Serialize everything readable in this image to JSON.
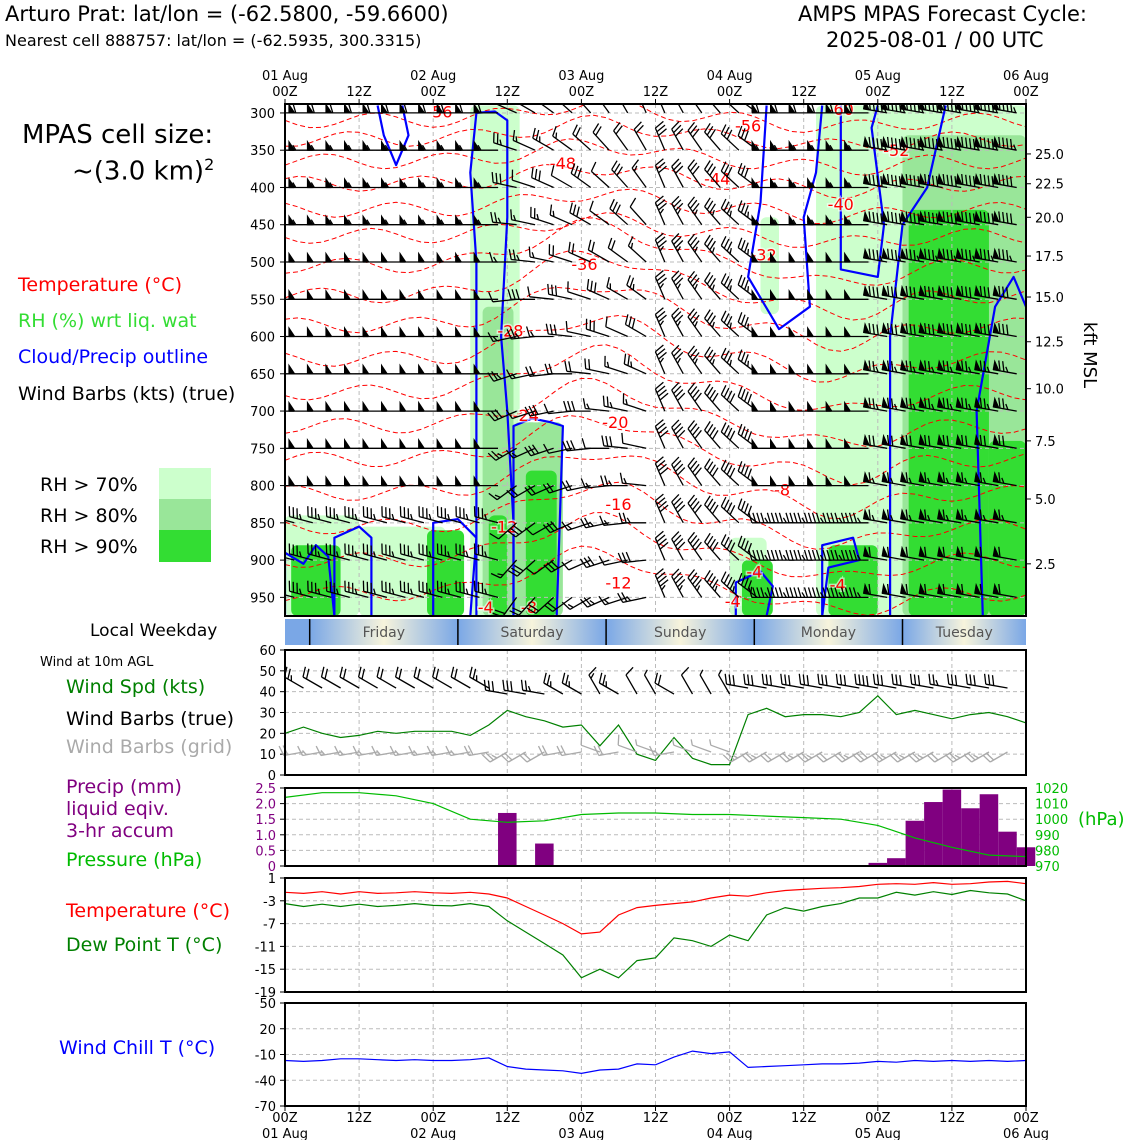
{
  "header": {
    "station_line": "Arturo Prat: lat/lon = (-62.5800, -59.6600)",
    "cell_line": "Nearest cell 888757: lat/lon = (-62.5935, 300.3315)",
    "cycle_title": "AMPS MPAS Forecast Cycle:",
    "cycle_value": "2025-08-01 / 00 UTC"
  },
  "cell_size": {
    "line1": "MPAS cell size:",
    "line2": "~(3.0 km)",
    "sup": "2"
  },
  "legend": {
    "temperature": "Temperature (°C)",
    "rh": "RH (%) wrt liq. wat",
    "cloud": "Cloud/Precip outline",
    "wind": "Wind Barbs (kts) (true)",
    "rh70": "RH > 70%",
    "rh80": "RH > 80%",
    "rh90": "RH > 90%"
  },
  "colors": {
    "temperature": "#ff0000",
    "rh_label": "#33dd33",
    "cloud": "#0000ff",
    "rh70": "#ccffcc",
    "rh80": "#99e699",
    "rh90": "#33dd33",
    "wind_spd": "#008000",
    "precip": "#800080",
    "pressure": "#00bb00",
    "dewpoint": "#008000",
    "windchill": "#0000ff",
    "grid_barb": "#aaaaaa"
  },
  "time_axis": {
    "top_labels": [
      {
        "h": 0,
        "l1": "01 Aug",
        "l2": "00Z"
      },
      {
        "h": 12,
        "l1": "",
        "l2": "12Z"
      },
      {
        "h": 24,
        "l1": "02 Aug",
        "l2": "00Z"
      },
      {
        "h": 36,
        "l1": "",
        "l2": "12Z"
      },
      {
        "h": 48,
        "l1": "03 Aug",
        "l2": "00Z"
      },
      {
        "h": 60,
        "l1": "",
        "l2": "12Z"
      },
      {
        "h": 72,
        "l1": "04 Aug",
        "l2": "00Z"
      },
      {
        "h": 84,
        "l1": "",
        "l2": "12Z"
      },
      {
        "h": 96,
        "l1": "05 Aug",
        "l2": "00Z"
      },
      {
        "h": 108,
        "l1": "",
        "l2": "12Z"
      },
      {
        "h": 120,
        "l1": "06 Aug",
        "l2": "00Z"
      }
    ],
    "bottom_labels": [
      {
        "h": 0,
        "l1": "00Z",
        "l2": "01 Aug"
      },
      {
        "h": 12,
        "l1": "12Z",
        "l2": ""
      },
      {
        "h": 24,
        "l1": "00Z",
        "l2": "02 Aug"
      },
      {
        "h": 36,
        "l1": "12Z",
        "l2": ""
      },
      {
        "h": 48,
        "l1": "00Z",
        "l2": "03 Aug"
      },
      {
        "h": 60,
        "l1": "12Z",
        "l2": ""
      },
      {
        "h": 72,
        "l1": "00Z",
        "l2": "04 Aug"
      },
      {
        "h": 84,
        "l1": "12Z",
        "l2": ""
      },
      {
        "h": 96,
        "l1": "00Z",
        "l2": "05 Aug"
      },
      {
        "h": 108,
        "l1": "12Z",
        "l2": ""
      },
      {
        "h": 120,
        "l1": "00Z",
        "l2": "06 Aug"
      }
    ]
  },
  "weekday": {
    "title": "Local Weekday",
    "days": [
      {
        "name": "Friday",
        "start": 4,
        "end": 28
      },
      {
        "name": "Saturday",
        "start": 28,
        "end": 52
      },
      {
        "name": "Sunday",
        "start": 52,
        "end": 76
      },
      {
        "name": "Monday",
        "start": 76,
        "end": 100
      },
      {
        "name": "Tuesday",
        "start": 100,
        "end": 120
      }
    ]
  },
  "panel_labels": {
    "wind10m": "Wind at 10m AGL",
    "wind_spd": "Wind Spd (kts)",
    "wind_barbs_true": "Wind Barbs (true)",
    "wind_barbs_grid": "Wind Barbs (grid)",
    "precip1": "Precip (mm)",
    "precip2": "liquid eqiv.",
    "precip3": "3-hr accum",
    "pressure": "Pressure (hPa)",
    "pressure_unit": "(hPa)",
    "temperature": "Temperature (°C)",
    "dewpoint": "Dew Point T (°C)",
    "windchill": "Wind Chill T (°C)",
    "kft": "kft MSL"
  },
  "chart_data": [
    {
      "type": "heatmap",
      "name": "upper-air time-height section",
      "y_pressure_ticks": [
        300,
        350,
        400,
        450,
        500,
        550,
        600,
        650,
        700,
        750,
        800,
        850,
        900,
        950
      ],
      "y_range_hpa": [
        975,
        288
      ],
      "kft_ticks": [
        {
          "label": "25.0",
          "p": 355
        },
        {
          "label": "22.5",
          "p": 395
        },
        {
          "label": "20.0",
          "p": 440
        },
        {
          "label": "17.5",
          "p": 492
        },
        {
          "label": "15.0",
          "p": 547
        },
        {
          "label": "12.5",
          "p": 607
        },
        {
          "label": "10.0",
          "p": 670
        },
        {
          "label": "7.5",
          "p": 740
        },
        {
          "label": "5.0",
          "p": 818
        },
        {
          "label": "2.5",
          "p": 905
        }
      ],
      "x_range_hours": [
        0,
        120
      ],
      "temperature_labels": [
        {
          "v": "-56",
          "h": 25,
          "p": 298
        },
        {
          "v": "-48",
          "h": 45,
          "p": 367
        },
        {
          "v": "-36",
          "h": 48.5,
          "p": 503
        },
        {
          "v": "-28",
          "h": 36.5,
          "p": 592
        },
        {
          "v": "-24",
          "h": 39,
          "p": 705
        },
        {
          "v": "-20",
          "h": 53.5,
          "p": 715
        },
        {
          "v": "-16",
          "h": 54,
          "p": 825
        },
        {
          "v": "-12",
          "h": 35.5,
          "p": 855
        },
        {
          "v": "-12",
          "h": 54,
          "p": 930
        },
        {
          "v": "-8",
          "h": 39.5,
          "p": 963
        },
        {
          "v": "-4",
          "h": 32.5,
          "p": 963
        },
        {
          "v": "-4",
          "h": 72.5,
          "p": 955
        },
        {
          "v": "-4",
          "h": 76,
          "p": 915
        },
        {
          "v": "-4",
          "h": 89.5,
          "p": 933
        },
        {
          "v": "-8",
          "h": 80.5,
          "p": 805
        },
        {
          "v": "-32",
          "h": 77.5,
          "p": 490
        },
        {
          "v": "-40",
          "h": 90,
          "p": 422
        },
        {
          "v": "-44",
          "h": 70,
          "p": 388
        },
        {
          "v": "-52",
          "h": 99,
          "p": 350
        },
        {
          "v": "-56",
          "h": 75,
          "p": 317
        },
        {
          "v": "-60",
          "h": 90,
          "p": 295
        }
      ],
      "rh_regions": [
        {
          "level": 70,
          "h0": 0,
          "h1": 12,
          "p_top": 840,
          "p_bot": 975
        },
        {
          "level": 90,
          "h0": 1,
          "h1": 9,
          "p_top": 880,
          "p_bot": 975
        },
        {
          "level": 70,
          "h0": 12,
          "h1": 26,
          "p_top": 855,
          "p_bot": 975
        },
        {
          "level": 90,
          "h0": 23,
          "h1": 29,
          "p_top": 860,
          "p_bot": 975
        },
        {
          "level": 70,
          "h0": 30,
          "h1": 38,
          "p_top": 290,
          "p_bot": 975
        },
        {
          "level": 80,
          "h0": 32,
          "h1": 37,
          "p_top": 560,
          "p_bot": 975
        },
        {
          "level": 90,
          "h0": 33,
          "h1": 36,
          "p_top": 840,
          "p_bot": 975
        },
        {
          "level": 80,
          "h0": 37,
          "h1": 45,
          "p_top": 715,
          "p_bot": 975
        },
        {
          "level": 90,
          "h0": 39,
          "h1": 44,
          "p_top": 780,
          "p_bot": 975
        },
        {
          "level": 70,
          "h0": 72,
          "h1": 78,
          "p_top": 870,
          "p_bot": 975
        },
        {
          "level": 90,
          "h0": 74,
          "h1": 79,
          "p_top": 900,
          "p_bot": 975
        },
        {
          "level": 70,
          "h0": 77,
          "h1": 80,
          "p_top": 440,
          "p_bot": 570
        },
        {
          "level": 70,
          "h0": 86,
          "h1": 120,
          "p_top": 290,
          "p_bot": 975
        },
        {
          "level": 80,
          "h0": 100,
          "h1": 120,
          "p_top": 330,
          "p_bot": 975
        },
        {
          "level": 90,
          "h0": 101,
          "h1": 114,
          "p_top": 430,
          "p_bot": 975
        },
        {
          "level": 90,
          "h0": 114,
          "h1": 120,
          "p_top": 740,
          "p_bot": 975
        },
        {
          "level": 90,
          "h0": 88,
          "h1": 96,
          "p_top": 880,
          "p_bot": 975
        }
      ]
    },
    {
      "type": "line",
      "name": "wind speed 10m",
      "ylim": [
        0,
        60
      ],
      "y_ticks": [
        0,
        10,
        20,
        30,
        40,
        50,
        60
      ],
      "x": [
        0,
        3,
        6,
        9,
        12,
        15,
        18,
        21,
        24,
        27,
        30,
        33,
        36,
        39,
        42,
        45,
        48,
        51,
        54,
        57,
        60,
        63,
        66,
        69,
        72,
        75,
        78,
        81,
        84,
        87,
        90,
        93,
        96,
        99,
        102,
        105,
        108,
        111,
        114,
        117,
        120
      ],
      "values": [
        20,
        23,
        20,
        18,
        19,
        21,
        20,
        21,
        21,
        21,
        19,
        24,
        31,
        28,
        26,
        23,
        24,
        14,
        24,
        10,
        7,
        18,
        8,
        5,
        5,
        29,
        32,
        28,
        29,
        29,
        28,
        30,
        38,
        29,
        31,
        29,
        27,
        29,
        30,
        28,
        25
      ]
    },
    {
      "type": "bar",
      "name": "precipitation 3-hr accum",
      "ylim": [
        0,
        2.5
      ],
      "y_ticks": [
        0,
        0.5,
        1.0,
        1.5,
        2.0,
        2.5
      ],
      "x": [
        0,
        3,
        6,
        9,
        12,
        15,
        18,
        21,
        24,
        27,
        30,
        33,
        36,
        39,
        42,
        45,
        48,
        51,
        54,
        57,
        60,
        63,
        66,
        69,
        72,
        75,
        78,
        81,
        84,
        87,
        90,
        93,
        96,
        99,
        102,
        105,
        108,
        111,
        114,
        117,
        120
      ],
      "values": [
        0,
        0,
        0,
        0,
        0.03,
        0,
        0,
        0,
        0,
        0,
        0,
        0,
        1.7,
        0,
        0.72,
        0,
        0,
        0,
        0,
        0,
        0,
        0,
        0,
        0,
        0,
        0,
        0,
        0,
        0,
        0,
        0,
        0,
        0.1,
        0.25,
        1.45,
        2.05,
        2.45,
        1.85,
        2.3,
        1.1,
        0.6
      ]
    },
    {
      "type": "line",
      "name": "pressure",
      "ylim": [
        970,
        1020
      ],
      "y_ticks": [
        970,
        980,
        990,
        1000,
        1010,
        1020
      ],
      "x": [
        0,
        6,
        12,
        18,
        24,
        30,
        36,
        42,
        48,
        54,
        60,
        66,
        72,
        78,
        84,
        90,
        96,
        102,
        108,
        114,
        120
      ],
      "values": [
        1014,
        1017,
        1017,
        1015,
        1010,
        1000,
        998,
        999,
        1003,
        1004,
        1004,
        1003,
        1003,
        1002,
        1001,
        1000,
        996,
        988,
        982,
        977,
        976
      ]
    },
    {
      "type": "line",
      "name": "temperature and dew point",
      "ylim": [
        -19,
        1
      ],
      "y_ticks": [
        1,
        -3,
        -7,
        -11,
        -15,
        -19
      ],
      "x": [
        0,
        3,
        6,
        9,
        12,
        15,
        18,
        21,
        24,
        27,
        30,
        33,
        36,
        39,
        42,
        45,
        48,
        51,
        54,
        57,
        60,
        63,
        66,
        69,
        72,
        75,
        78,
        81,
        84,
        87,
        90,
        93,
        96,
        99,
        102,
        105,
        108,
        111,
        114,
        117,
        120
      ],
      "series": [
        {
          "name": "Temperature",
          "values": [
            -1.5,
            -1.7,
            -1.4,
            -1.8,
            -1.4,
            -1.7,
            -1.6,
            -1.4,
            -1.6,
            -1.7,
            -1.5,
            -1.8,
            -2.5,
            -4,
            -5.5,
            -7,
            -8.8,
            -8.5,
            -5.5,
            -4.2,
            -3.8,
            -3.5,
            -3.2,
            -2.5,
            -2,
            -2.2,
            -1.6,
            -1.2,
            -1,
            -0.8,
            -0.7,
            -0.5,
            -0.1,
            0,
            -0.1,
            0.2,
            -0.1,
            0,
            0.3,
            0.4,
            0
          ]
        },
        {
          "name": "Dew Point",
          "values": [
            -3.5,
            -4,
            -3.6,
            -4,
            -3.6,
            -4,
            -3.8,
            -3.5,
            -3.8,
            -3.9,
            -3.5,
            -4,
            -6.5,
            -8.5,
            -10.5,
            -12.5,
            -16.5,
            -15,
            -16.5,
            -13.5,
            -13,
            -9.5,
            -10,
            -11,
            -9,
            -10,
            -5.5,
            -4.2,
            -4.8,
            -4,
            -3.5,
            -2.5,
            -2.5,
            -1.5,
            -2,
            -1.4,
            -1.9,
            -1.2,
            -1.6,
            -1.8,
            -3
          ]
        }
      ]
    },
    {
      "type": "line",
      "name": "wind chill",
      "ylim": [
        -70,
        50
      ],
      "y_ticks": [
        50,
        20,
        -10,
        -40,
        -70
      ],
      "x": [
        0,
        3,
        6,
        9,
        12,
        15,
        18,
        21,
        24,
        27,
        30,
        33,
        36,
        39,
        42,
        45,
        48,
        51,
        54,
        57,
        60,
        63,
        66,
        69,
        72,
        75,
        78,
        81,
        84,
        87,
        90,
        93,
        96,
        99,
        102,
        105,
        108,
        111,
        114,
        117,
        120
      ],
      "values": [
        -17,
        -18,
        -17,
        -15,
        -15,
        -16,
        -17,
        -16,
        -17,
        -17,
        -16,
        -14,
        -24,
        -27,
        -28,
        -29,
        -32,
        -28,
        -27,
        -21,
        -22,
        -13,
        -6,
        -9,
        -7,
        -25,
        -24,
        -23,
        -22,
        -21,
        -21,
        -20,
        -18,
        -19,
        -17,
        -18,
        -17,
        -18,
        -17,
        -18,
        -17
      ]
    }
  ]
}
